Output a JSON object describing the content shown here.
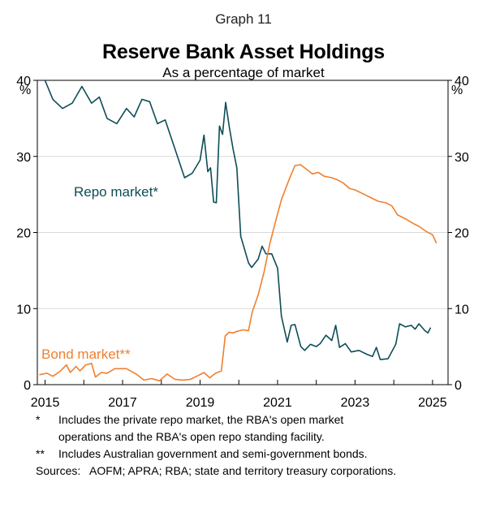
{
  "header": {
    "graph_number": "Graph 11",
    "title": "Reserve Bank Asset Holdings",
    "subtitle": "As a percentage of market"
  },
  "footnotes": [
    {
      "marker": "*",
      "text": "Includes the private repo market, the RBA's open market operations and the RBA's open repo standing facility."
    },
    {
      "marker": "**",
      "text": "Includes Australian government and semi-government bonds."
    }
  ],
  "sources": {
    "label": "Sources:",
    "text": "AOFM; APRA; RBA; state and territory treasury corporations."
  },
  "colors": {
    "repo": "#0d4d57",
    "bond": "#f07f2f",
    "grid": "#d9d9d9",
    "axis": "#000000"
  },
  "chart_data": {
    "type": "line",
    "title": "Reserve Bank Asset Holdings",
    "subtitle": "As a percentage of market",
    "ylabel_left": "%",
    "ylabel_right": "%",
    "xlim": [
      2014.8,
      2025.4
    ],
    "ylim": [
      0,
      40
    ],
    "yticks": [
      0,
      10,
      20,
      30,
      40
    ],
    "xticks": [
      2015,
      2017,
      2019,
      2021,
      2023,
      2025
    ],
    "grid": true,
    "series": [
      {
        "name": "Repo market*",
        "color": "#0d4d57",
        "points": [
          [
            2015.0,
            40.0
          ],
          [
            2015.2,
            37.5
          ],
          [
            2015.45,
            36.3
          ],
          [
            2015.7,
            37.0
          ],
          [
            2015.95,
            39.2
          ],
          [
            2016.2,
            37.0
          ],
          [
            2016.4,
            37.8
          ],
          [
            2016.6,
            35.0
          ],
          [
            2016.85,
            34.3
          ],
          [
            2017.1,
            36.3
          ],
          [
            2017.3,
            35.2
          ],
          [
            2017.5,
            37.5
          ],
          [
            2017.7,
            37.2
          ],
          [
            2017.9,
            34.3
          ],
          [
            2018.1,
            34.8
          ],
          [
            2018.35,
            31.0
          ],
          [
            2018.6,
            27.2
          ],
          [
            2018.8,
            27.8
          ],
          [
            2019.0,
            29.5
          ],
          [
            2019.1,
            32.8
          ],
          [
            2019.2,
            28.0
          ],
          [
            2019.27,
            28.5
          ],
          [
            2019.35,
            24.0
          ],
          [
            2019.42,
            23.9
          ],
          [
            2019.5,
            34.0
          ],
          [
            2019.58,
            32.9
          ],
          [
            2019.66,
            37.1
          ],
          [
            2019.75,
            34.0
          ],
          [
            2019.85,
            31.0
          ],
          [
            2019.95,
            28.5
          ],
          [
            2020.05,
            19.5
          ],
          [
            2020.25,
            16.0
          ],
          [
            2020.33,
            15.4
          ],
          [
            2020.5,
            16.5
          ],
          [
            2020.6,
            18.2
          ],
          [
            2020.7,
            17.2
          ],
          [
            2020.85,
            17.2
          ],
          [
            2021.0,
            15.3
          ],
          [
            2021.1,
            9.0
          ],
          [
            2021.25,
            5.6
          ],
          [
            2021.35,
            7.8
          ],
          [
            2021.45,
            7.9
          ],
          [
            2021.6,
            5.0
          ],
          [
            2021.7,
            4.5
          ],
          [
            2021.85,
            5.3
          ],
          [
            2022.0,
            5.0
          ],
          [
            2022.1,
            5.4
          ],
          [
            2022.25,
            6.5
          ],
          [
            2022.4,
            5.8
          ],
          [
            2022.5,
            7.8
          ],
          [
            2022.6,
            4.9
          ],
          [
            2022.75,
            5.4
          ],
          [
            2022.9,
            4.3
          ],
          [
            2023.1,
            4.5
          ],
          [
            2023.3,
            4.0
          ],
          [
            2023.45,
            3.7
          ],
          [
            2023.55,
            4.9
          ],
          [
            2023.65,
            3.3
          ],
          [
            2023.85,
            3.4
          ],
          [
            2024.05,
            5.3
          ],
          [
            2024.15,
            8.0
          ],
          [
            2024.3,
            7.6
          ],
          [
            2024.45,
            7.8
          ],
          [
            2024.55,
            7.3
          ],
          [
            2024.65,
            8.0
          ],
          [
            2024.8,
            7.1
          ],
          [
            2024.88,
            6.8
          ],
          [
            2024.95,
            7.5
          ]
        ]
      },
      {
        "name": "Bond market**",
        "color": "#f07f2f",
        "points": [
          [
            2014.85,
            1.3
          ],
          [
            2015.05,
            1.5
          ],
          [
            2015.2,
            1.1
          ],
          [
            2015.4,
            1.8
          ],
          [
            2015.55,
            2.6
          ],
          [
            2015.65,
            1.6
          ],
          [
            2015.8,
            2.4
          ],
          [
            2015.9,
            1.8
          ],
          [
            2016.05,
            2.6
          ],
          [
            2016.2,
            2.8
          ],
          [
            2016.3,
            1.0
          ],
          [
            2016.45,
            1.6
          ],
          [
            2016.6,
            1.5
          ],
          [
            2016.8,
            2.1
          ],
          [
            2017.1,
            2.1
          ],
          [
            2017.35,
            1.4
          ],
          [
            2017.55,
            0.6
          ],
          [
            2017.75,
            0.8
          ],
          [
            2017.95,
            0.5
          ],
          [
            2018.15,
            1.4
          ],
          [
            2018.35,
            0.7
          ],
          [
            2018.55,
            0.6
          ],
          [
            2018.75,
            0.7
          ],
          [
            2018.95,
            1.2
          ],
          [
            2019.1,
            1.6
          ],
          [
            2019.25,
            0.9
          ],
          [
            2019.4,
            1.5
          ],
          [
            2019.55,
            1.8
          ],
          [
            2019.65,
            6.4
          ],
          [
            2019.75,
            6.9
          ],
          [
            2019.85,
            6.8
          ],
          [
            2019.95,
            7.0
          ],
          [
            2020.1,
            7.2
          ],
          [
            2020.25,
            7.1
          ],
          [
            2020.35,
            9.6
          ],
          [
            2020.5,
            11.8
          ],
          [
            2020.65,
            14.8
          ],
          [
            2020.8,
            18.5
          ],
          [
            2020.95,
            21.5
          ],
          [
            2021.1,
            24.3
          ],
          [
            2021.3,
            27.0
          ],
          [
            2021.45,
            28.8
          ],
          [
            2021.6,
            28.9
          ],
          [
            2021.75,
            28.3
          ],
          [
            2021.9,
            27.7
          ],
          [
            2022.05,
            27.9
          ],
          [
            2022.2,
            27.4
          ],
          [
            2022.4,
            27.2
          ],
          [
            2022.55,
            26.9
          ],
          [
            2022.7,
            26.5
          ],
          [
            2022.85,
            25.8
          ],
          [
            2023.0,
            25.6
          ],
          [
            2023.2,
            25.1
          ],
          [
            2023.4,
            24.6
          ],
          [
            2023.6,
            24.1
          ],
          [
            2023.8,
            23.9
          ],
          [
            2023.95,
            23.5
          ],
          [
            2024.1,
            22.3
          ],
          [
            2024.3,
            21.8
          ],
          [
            2024.5,
            21.2
          ],
          [
            2024.65,
            20.8
          ],
          [
            2024.85,
            20.1
          ],
          [
            2025.0,
            19.7
          ],
          [
            2025.1,
            18.6
          ]
        ]
      }
    ]
  }
}
